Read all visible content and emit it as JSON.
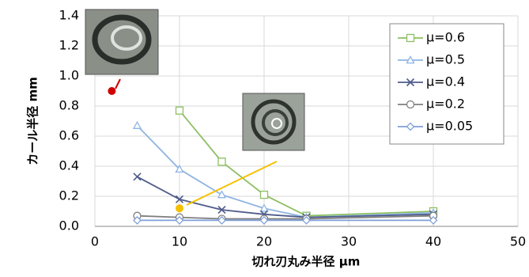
{
  "chart_data": {
    "type": "line",
    "x_label": "切れ刃丸み半径 μm",
    "y_label": "カール半径 mm",
    "xlim": [
      0,
      50
    ],
    "xticks": [
      0,
      10,
      20,
      30,
      40,
      50
    ],
    "ylim": [
      0,
      1.4
    ],
    "yticks": [
      {
        "value": 0,
        "label": "0.0"
      },
      0.2,
      0.4,
      0.6,
      0.8,
      {
        "value": 1,
        "label": "1.0"
      },
      1.2,
      1.4
    ],
    "grid": true,
    "legend": "upper right",
    "series": [
      {
        "name": "μ=0.6",
        "color": "#8cc063",
        "marker": "square",
        "x": [
          10,
          15,
          20,
          25,
          40
        ],
        "values": [
          0.77,
          0.43,
          0.21,
          0.07,
          0.1
        ]
      },
      {
        "name": "μ=0.5",
        "color": "#8eb4e3",
        "marker": "triangle",
        "x": [
          5,
          10,
          15,
          20,
          25,
          40
        ],
        "values": [
          0.67,
          0.38,
          0.21,
          0.12,
          0.06,
          0.09
        ]
      },
      {
        "name": "μ=0.4",
        "color": "#4f5b8a",
        "marker": "x",
        "x": [
          5,
          10,
          15,
          20,
          25,
          40
        ],
        "values": [
          0.33,
          0.18,
          0.11,
          0.08,
          0.06,
          0.08
        ]
      },
      {
        "name": "μ=0.2",
        "color": "#7f7f7f",
        "marker": "circle",
        "x": [
          5,
          10,
          15,
          20,
          25,
          40
        ],
        "values": [
          0.07,
          0.06,
          0.05,
          0.05,
          0.05,
          0.07
        ]
      },
      {
        "name": "μ=0.05",
        "color": "#7f9fd9",
        "marker": "diamond",
        "x": [
          5,
          10,
          15,
          20,
          25,
          40
        ],
        "values": [
          0.04,
          0.04,
          0.04,
          0.04,
          0.04,
          0.04
        ]
      }
    ],
    "highlight_points": [
      {
        "x": 2,
        "y": 0.9,
        "color": "#d00000"
      },
      {
        "x": 10,
        "y": 0.12,
        "color": "#f5c000"
      }
    ]
  }
}
